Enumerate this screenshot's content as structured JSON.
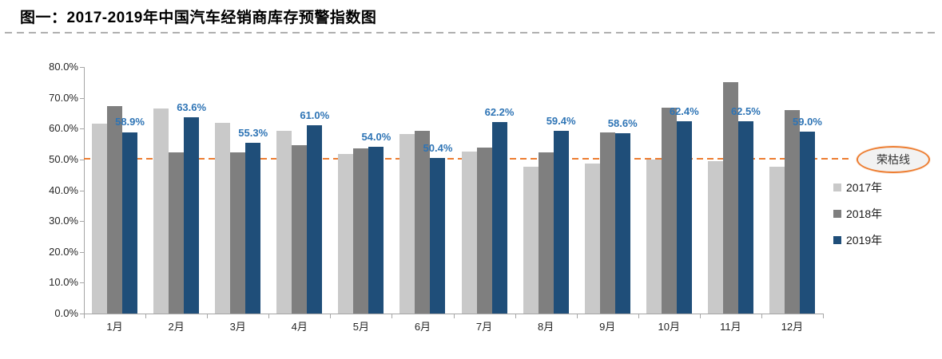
{
  "title": "图一：2017-2019年中国汽车经销商库存预警指数图",
  "chart_data": {
    "type": "bar",
    "title": "图一：2017-2019年中国汽车经销商库存预警指数图",
    "categories": [
      "1月",
      "2月",
      "3月",
      "4月",
      "5月",
      "6月",
      "7月",
      "8月",
      "9月",
      "10月",
      "11月",
      "12月"
    ],
    "series": [
      {
        "name": "2017年",
        "color": "#c9c9c9",
        "values": [
          61.5,
          66.6,
          61.9,
          59.2,
          51.8,
          58.2,
          52.6,
          47.6,
          48.7,
          49.9,
          49.5,
          47.7
        ]
      },
      {
        "name": "2018年",
        "color": "#7f7f7f",
        "values": [
          67.2,
          52.4,
          52.3,
          54.6,
          53.7,
          59.2,
          53.9,
          52.2,
          58.9,
          66.9,
          75.1,
          66.1
        ]
      },
      {
        "name": "2019年",
        "color": "#1f4e79",
        "values": [
          58.9,
          63.6,
          55.3,
          61.0,
          54.0,
          50.4,
          62.2,
          59.4,
          58.6,
          62.4,
          62.5,
          59.0
        ],
        "data_labels": [
          "58.9%",
          "63.6%",
          "55.3%",
          "61.0%",
          "54.0%",
          "50.4%",
          "62.2%",
          "59.4%",
          "58.6%",
          "62.4%",
          "62.5%",
          "59.0%"
        ]
      }
    ],
    "y_tick_labels": [
      "80.0%",
      "70.0%",
      "60.0%",
      "50.0%",
      "40.0%",
      "30.0%",
      "20.0%",
      "10.0%",
      "0.0%"
    ],
    "ylim": [
      0,
      80
    ],
    "grid": false,
    "legend_position": "right",
    "reference_line": {
      "value": 50,
      "label": "荣枯线",
      "color": "#ed7d31",
      "style": "dashed"
    }
  },
  "colors": {
    "data_label": "#2e74b5",
    "axis": "#a6a6a6",
    "axis_text": "#262626",
    "reference": "#ed7d31",
    "badge_fill": "#f2f2f2"
  }
}
